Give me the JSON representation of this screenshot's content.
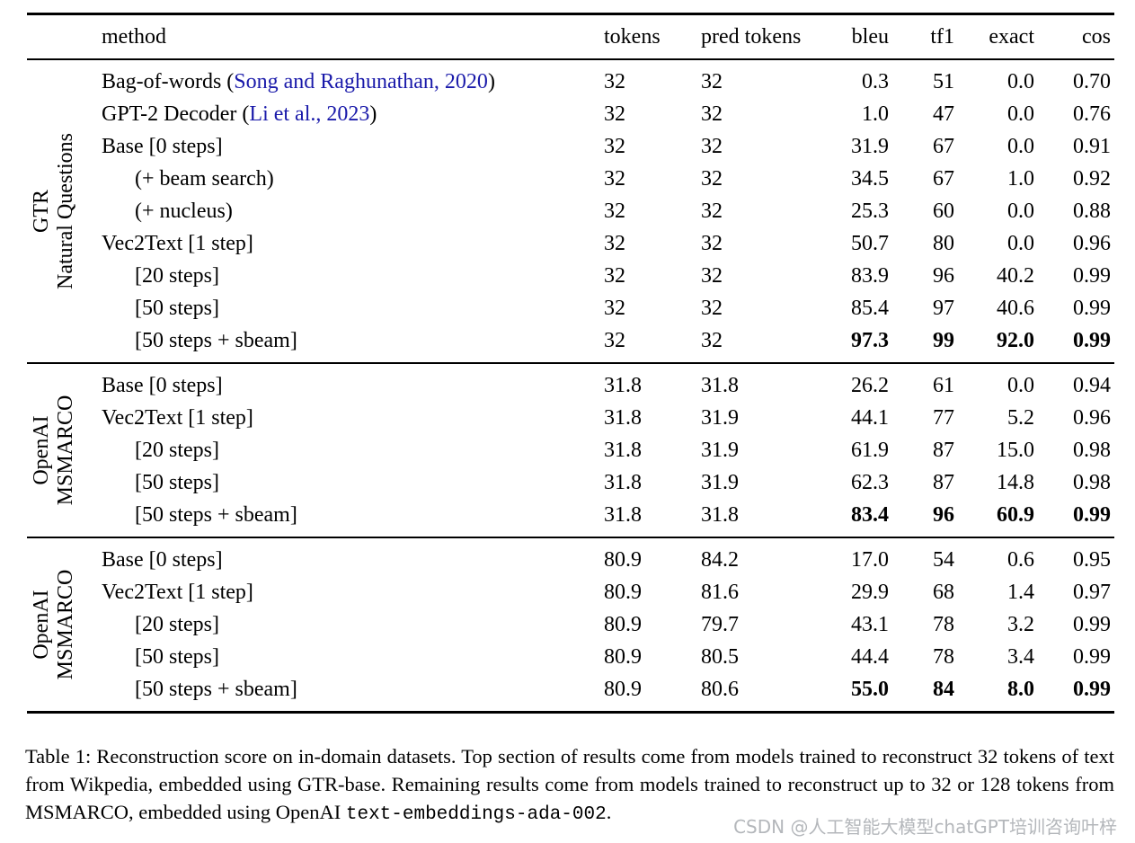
{
  "table": {
    "columns": [
      "method",
      "tokens",
      "pred tokens",
      "bleu",
      "tf1",
      "exact",
      "cos"
    ],
    "sections": [
      {
        "label_lines": [
          "GTR",
          "Natural Questions"
        ],
        "rows": [
          {
            "method_pre": "Bag-of-words (",
            "method_link": "Song and Raghunathan, 2020",
            "method_post": ")",
            "indent": false,
            "bold": false,
            "tokens": "32",
            "pred_tokens": "32",
            "bleu": "0.3",
            "tf1": "51",
            "exact": "0.0",
            "cos": "0.70"
          },
          {
            "method_pre": "GPT-2 Decoder (",
            "method_link": "Li et al., 2023",
            "method_post": ")",
            "indent": false,
            "bold": false,
            "tokens": "32",
            "pred_tokens": "32",
            "bleu": "1.0",
            "tf1": "47",
            "exact": "0.0",
            "cos": "0.76"
          },
          {
            "method_pre": "Base [0 steps]",
            "method_link": "",
            "method_post": "",
            "indent": false,
            "bold": false,
            "tokens": "32",
            "pred_tokens": "32",
            "bleu": "31.9",
            "tf1": "67",
            "exact": "0.0",
            "cos": "0.91"
          },
          {
            "method_pre": "(+ beam search)",
            "method_link": "",
            "method_post": "",
            "indent": true,
            "bold": false,
            "tokens": "32",
            "pred_tokens": "32",
            "bleu": "34.5",
            "tf1": "67",
            "exact": "1.0",
            "cos": "0.92"
          },
          {
            "method_pre": "(+ nucleus)",
            "method_link": "",
            "method_post": "",
            "indent": true,
            "bold": false,
            "tokens": "32",
            "pred_tokens": "32",
            "bleu": "25.3",
            "tf1": "60",
            "exact": "0.0",
            "cos": "0.88"
          },
          {
            "method_pre": "Vec2Text [1 step]",
            "method_link": "",
            "method_post": "",
            "indent": false,
            "bold": false,
            "tokens": "32",
            "pred_tokens": "32",
            "bleu": "50.7",
            "tf1": "80",
            "exact": "0.0",
            "cos": "0.96"
          },
          {
            "method_pre": "[20 steps]",
            "method_link": "",
            "method_post": "",
            "indent": true,
            "bold": false,
            "tokens": "32",
            "pred_tokens": "32",
            "bleu": "83.9",
            "tf1": "96",
            "exact": "40.2",
            "cos": "0.99"
          },
          {
            "method_pre": "[50 steps]",
            "method_link": "",
            "method_post": "",
            "indent": true,
            "bold": false,
            "tokens": "32",
            "pred_tokens": "32",
            "bleu": "85.4",
            "tf1": "97",
            "exact": "40.6",
            "cos": "0.99"
          },
          {
            "method_pre": "[50 steps + sbeam]",
            "method_link": "",
            "method_post": "",
            "indent": true,
            "bold": true,
            "tokens": "32",
            "pred_tokens": "32",
            "bleu": "97.3",
            "tf1": "99",
            "exact": "92.0",
            "cos": "0.99"
          }
        ]
      },
      {
        "label_lines": [
          "OpenAI",
          "MSMARCO"
        ],
        "rows": [
          {
            "method_pre": "Base [0 steps]",
            "method_link": "",
            "method_post": "",
            "indent": false,
            "bold": false,
            "tokens": "31.8",
            "pred_tokens": "31.8",
            "bleu": "26.2",
            "tf1": "61",
            "exact": "0.0",
            "cos": "0.94"
          },
          {
            "method_pre": "Vec2Text [1 step]",
            "method_link": "",
            "method_post": "",
            "indent": false,
            "bold": false,
            "tokens": "31.8",
            "pred_tokens": "31.9",
            "bleu": "44.1",
            "tf1": "77",
            "exact": "5.2",
            "cos": "0.96"
          },
          {
            "method_pre": "[20 steps]",
            "method_link": "",
            "method_post": "",
            "indent": true,
            "bold": false,
            "tokens": "31.8",
            "pred_tokens": "31.9",
            "bleu": "61.9",
            "tf1": "87",
            "exact": "15.0",
            "cos": "0.98"
          },
          {
            "method_pre": "[50 steps]",
            "method_link": "",
            "method_post": "",
            "indent": true,
            "bold": false,
            "tokens": "31.8",
            "pred_tokens": "31.9",
            "bleu": "62.3",
            "tf1": "87",
            "exact": "14.8",
            "cos": "0.98"
          },
          {
            "method_pre": "[50 steps + sbeam]",
            "method_link": "",
            "method_post": "",
            "indent": true,
            "bold": true,
            "tokens": "31.8",
            "pred_tokens": "31.8",
            "bleu": "83.4",
            "tf1": "96",
            "exact": "60.9",
            "cos": "0.99"
          }
        ]
      },
      {
        "label_lines": [
          "OpenAI",
          "MSMARCO"
        ],
        "rows": [
          {
            "method_pre": "Base [0 steps]",
            "method_link": "",
            "method_post": "",
            "indent": false,
            "bold": false,
            "tokens": "80.9",
            "pred_tokens": "84.2",
            "bleu": "17.0",
            "tf1": "54",
            "exact": "0.6",
            "cos": "0.95"
          },
          {
            "method_pre": "Vec2Text [1 step]",
            "method_link": "",
            "method_post": "",
            "indent": false,
            "bold": false,
            "tokens": "80.9",
            "pred_tokens": "81.6",
            "bleu": "29.9",
            "tf1": "68",
            "exact": "1.4",
            "cos": "0.97"
          },
          {
            "method_pre": "[20 steps]",
            "method_link": "",
            "method_post": "",
            "indent": true,
            "bold": false,
            "tokens": "80.9",
            "pred_tokens": "79.7",
            "bleu": "43.1",
            "tf1": "78",
            "exact": "3.2",
            "cos": "0.99"
          },
          {
            "method_pre": "[50 steps]",
            "method_link": "",
            "method_post": "",
            "indent": true,
            "bold": false,
            "tokens": "80.9",
            "pred_tokens": "80.5",
            "bleu": "44.4",
            "tf1": "78",
            "exact": "3.4",
            "cos": "0.99"
          },
          {
            "method_pre": "[50 steps + sbeam]",
            "method_link": "",
            "method_post": "",
            "indent": true,
            "bold": true,
            "tokens": "80.9",
            "pred_tokens": "80.6",
            "bleu": "55.0",
            "tf1": "84",
            "exact": "8.0",
            "cos": "0.99"
          }
        ]
      }
    ]
  },
  "caption": {
    "text_before": "Table 1: Reconstruction score on in-domain datasets. Top section of results come from models trained to reconstruct 32 tokens of text from Wikpedia, embedded using GTR-base.  Remaining results come from models trained to reconstruct up to 32 or 128 tokens from MSMARCO, embedded using OpenAI ",
    "mono": "text-embeddings-ada-002",
    "text_after": "."
  },
  "watermark": "CSDN @人工智能大模型chatGPT培训咨询叶梓",
  "colors": {
    "citation_link": "#1a1aaa",
    "watermark": "#b4b7bb"
  }
}
